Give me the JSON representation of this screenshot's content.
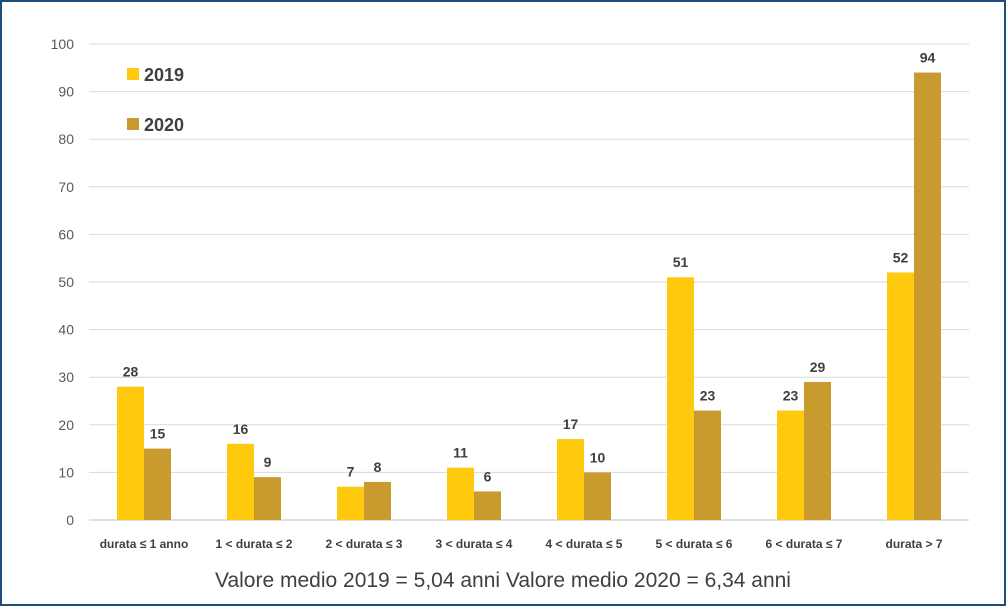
{
  "chart_data": {
    "type": "bar",
    "categories": [
      "durata ≤ 1 anno",
      "1 < durata ≤ 2",
      "2 < durata ≤ 3",
      "3 < durata ≤ 4",
      "4 < durata ≤ 5",
      "5 < durata ≤ 6",
      "6 < durata ≤ 7",
      "durata > 7"
    ],
    "series": [
      {
        "name": "2019",
        "color": "#ffc90e",
        "values": [
          28,
          16,
          7,
          11,
          17,
          51,
          23,
          52
        ]
      },
      {
        "name": "2020",
        "color": "#c99a2e",
        "values": [
          15,
          9,
          8,
          6,
          10,
          23,
          29,
          94
        ]
      }
    ],
    "ylim": [
      0,
      100
    ],
    "yticks": [
      0,
      10,
      20,
      30,
      40,
      50,
      60,
      70,
      80,
      90,
      100
    ],
    "grid": true,
    "legend_position": "top-left",
    "data_labels": true
  },
  "caption": "Valore medio 2019 = 5,04 anni   Valore medio 2020 = 6,34 anni"
}
